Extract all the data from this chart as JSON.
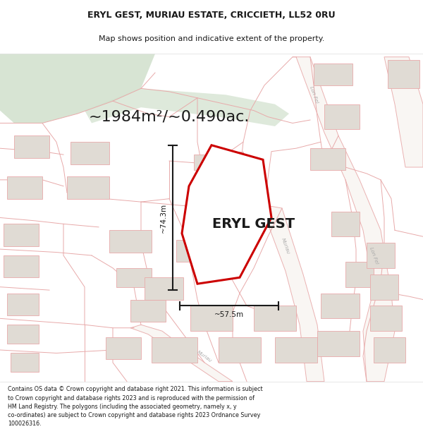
{
  "title_line1": "ERYL GEST, MURIAU ESTATE, CRICCIETH, LL52 0RU",
  "title_line2": "Map shows position and indicative extent of the property.",
  "area_label": "~1984m²/~0.490ac.",
  "property_name": "ERYL GEST",
  "dim_height": "~74.3m",
  "dim_width": "~57.5m",
  "footer_text": "Contains OS data © Crown copyright and database right 2021. This information is subject\nto Crown copyright and database rights 2023 and is reproduced with the permission of\nHM Land Registry. The polygons (including the associated geometry, namely x, y\nco-ordinates) are subject to Crown copyright and database rights 2023 Ordnance Survey\n100026316.",
  "map_bg": "#f9f6f2",
  "road_line_color": "#e8aaaa",
  "building_fill": "#e0dbd4",
  "building_edge": "#c8c0b8",
  "green_color": "#d0e0cc",
  "property_color": "#cc0000",
  "dim_color": "#1a1a1a",
  "text_color": "#1a1a1a",
  "road_label_color": "#aaaaaa",
  "white": "#ffffff",
  "title_fontsize": 9,
  "subtitle_fontsize": 8,
  "area_fontsize": 16,
  "propname_fontsize": 14,
  "dim_fontsize": 7.5,
  "footer_fontsize": 5.8
}
